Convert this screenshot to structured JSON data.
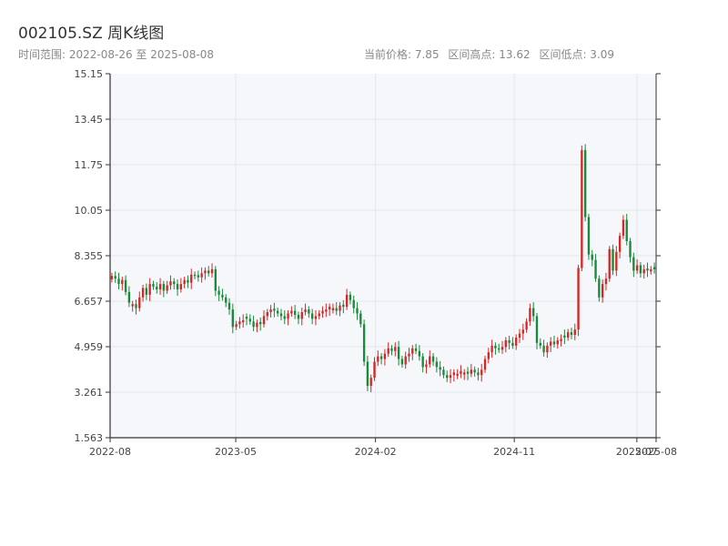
{
  "header": {
    "title": "002105.SZ 周K线图",
    "range_label": "时间范围: 2022-08-26 至 2025-08-08",
    "current_price": "当前价格: 7.85",
    "range_high": "区间高点: 13.62",
    "range_low": "区间低点: 3.09"
  },
  "colors": {
    "up": "#d62728",
    "down": "#1a8a3a",
    "plot_bg": "#f5f7fa",
    "grid": "#e3e7ec",
    "axis": "#333333"
  },
  "chart_data": {
    "type": "candlestick",
    "title": "002105.SZ 周K线图",
    "ylim": [
      1.563,
      15.15
    ],
    "y_ticks": [
      "1.563",
      "3.261",
      "4.959",
      "6.657",
      "8.355",
      "10.05",
      "11.75",
      "13.45",
      "15.15"
    ],
    "x_ticks": [
      "2022-08",
      "2023-05",
      "2024-02",
      "2024-11",
      "2025-07",
      "2025-08"
    ],
    "grid": true,
    "start_date": "2022-08-26",
    "end_date": "2025-08-08",
    "close_series": [
      7.6,
      7.5,
      7.3,
      7.45,
      7.0,
      6.6,
      6.55,
      6.4,
      6.8,
      7.15,
      6.9,
      7.3,
      7.2,
      7.1,
      7.3,
      7.05,
      7.25,
      7.4,
      7.3,
      7.1,
      7.3,
      7.45,
      7.35,
      7.65,
      7.6,
      7.55,
      7.7,
      7.8,
      7.7,
      7.85,
      7.05,
      6.9,
      6.8,
      6.6,
      6.35,
      5.7,
      5.8,
      5.9,
      5.95,
      6.0,
      5.9,
      5.7,
      5.85,
      5.8,
      6.1,
      6.25,
      6.35,
      6.3,
      6.2,
      6.1,
      6.0,
      6.2,
      6.3,
      6.15,
      6.0,
      6.25,
      6.35,
      6.2,
      6.0,
      6.1,
      6.2,
      6.3,
      6.35,
      6.45,
      6.4,
      6.3,
      6.5,
      6.45,
      6.9,
      6.7,
      6.4,
      6.2,
      5.8,
      4.4,
      3.5,
      3.8,
      4.4,
      4.6,
      4.5,
      4.7,
      4.9,
      4.8,
      4.95,
      4.5,
      4.3,
      4.6,
      4.7,
      4.9,
      4.8,
      4.6,
      4.2,
      4.3,
      4.6,
      4.4,
      4.2,
      4.1,
      3.9,
      3.8,
      3.9,
      4.0,
      3.95,
      4.05,
      4.0,
      3.95,
      4.1,
      4.0,
      3.9,
      4.1,
      4.5,
      4.75,
      5.0,
      4.9,
      4.85,
      4.95,
      5.2,
      5.1,
      5.0,
      5.3,
      5.45,
      5.6,
      5.9,
      6.4,
      6.1,
      5.1,
      5.0,
      4.75,
      5.0,
      5.15,
      5.05,
      5.2,
      5.25,
      5.3,
      5.5,
      5.4,
      5.6,
      7.9,
      12.3,
      9.8,
      8.4,
      8.2,
      7.5,
      6.8,
      7.3,
      7.5,
      8.6,
      7.8,
      8.5,
      9.1,
      9.7,
      8.9,
      8.3,
      7.8,
      8.0,
      7.7,
      7.85,
      7.8,
      7.85,
      7.85
    ]
  }
}
